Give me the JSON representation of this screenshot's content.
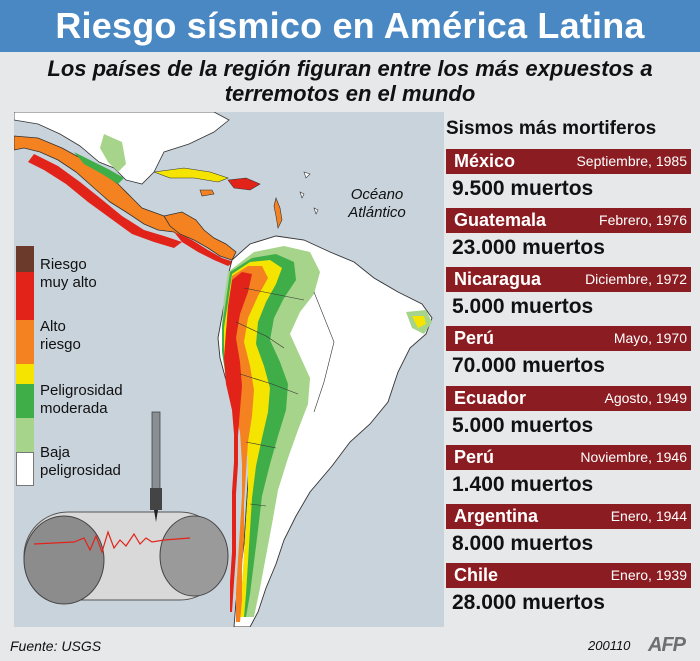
{
  "header": {
    "title": "Riesgo sísmico en América Latina",
    "subtitle": "Los países de la región figuran entre los más expuestos a terremotos en el mundo"
  },
  "map": {
    "ocean_label": "Océano Atlántico",
    "colors": {
      "very_high": "#e2231a",
      "high": "#f58220",
      "moderate_high": "#f5e400",
      "moderate": "#3fae49",
      "low": "#a6d48a",
      "very_low": "#ffffff",
      "top": "#6b3a2a",
      "ocean": "#c9d3dc"
    }
  },
  "legend": {
    "items": [
      {
        "label": "Riesgo\nmuy alto"
      },
      {
        "label": "Alto\nriesgo"
      },
      {
        "label": "Peligrosidad\nmoderada"
      },
      {
        "label": "Baja\npeligrosidad"
      }
    ]
  },
  "quakes": {
    "title": "Sismos más mortiferos",
    "items": [
      {
        "country": "México",
        "date": "Septiembre, 1985",
        "deaths": "9.500 muertos"
      },
      {
        "country": "Guatemala",
        "date": "Febrero, 1976",
        "deaths": "23.000 muertos"
      },
      {
        "country": "Nicaragua",
        "date": "Diciembre, 1972",
        "deaths": "5.000 muertos"
      },
      {
        "country": "Perú",
        "date": "Mayo, 1970",
        "deaths": "70.000 muertos"
      },
      {
        "country": "Ecuador",
        "date": "Agosto, 1949",
        "deaths": "5.000 muertos"
      },
      {
        "country": "Perú",
        "date": "Noviembre, 1946",
        "deaths": "1.400 muertos"
      },
      {
        "country": "Argentina",
        "date": "Enero, 1944",
        "deaths": "8.000 muertos"
      },
      {
        "country": "Chile",
        "date": "Enero, 1939",
        "deaths": "28.000 muertos"
      }
    ]
  },
  "footer": {
    "source": "Fuente: USGS",
    "code": "200110",
    "logo": "AFP"
  }
}
